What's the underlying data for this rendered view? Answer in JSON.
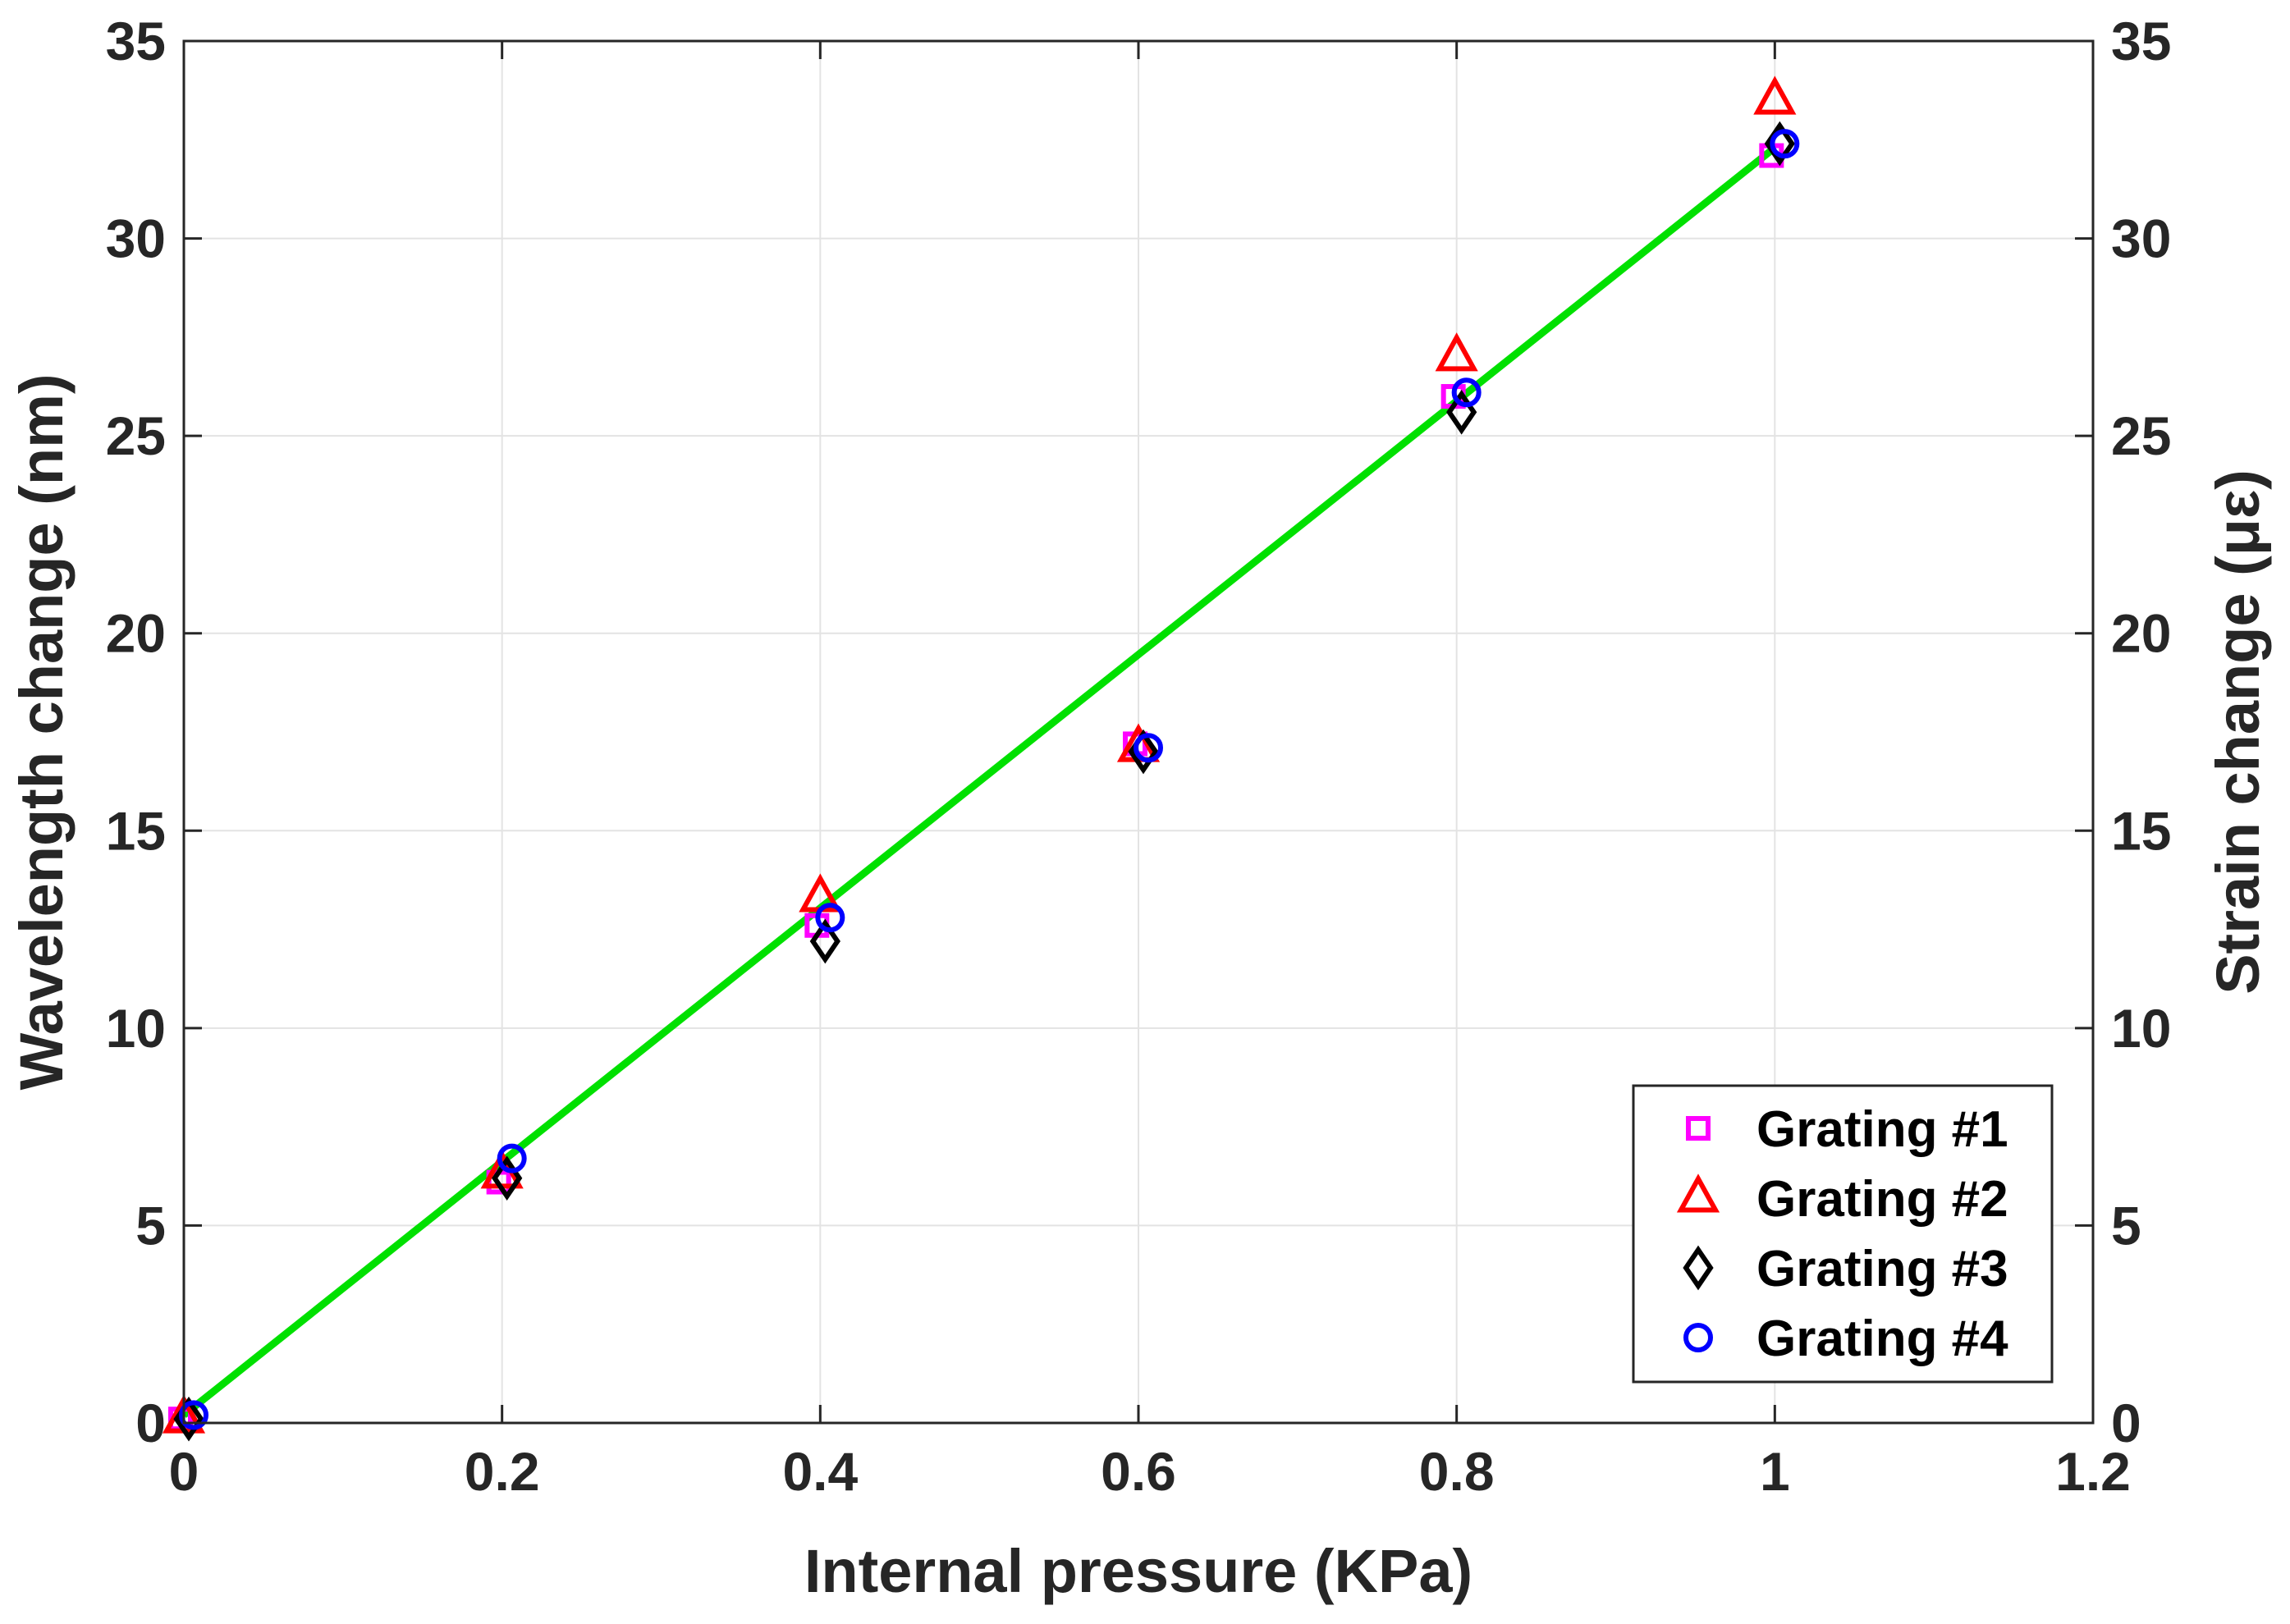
{
  "chart_data": {
    "type": "scatter",
    "title": "",
    "xlabel": "Internal pressure (KPa)",
    "ylabel": "Wavelength change (nm)",
    "ylabel_right": "Strain change (με)",
    "xlim": [
      0,
      1.2
    ],
    "ylim": [
      0,
      35
    ],
    "ylim_right": [
      0,
      35
    ],
    "xticks": [
      "0",
      "0.2",
      "0.4",
      "0.6",
      "0.8",
      "1",
      "1.2"
    ],
    "xtick_values": [
      0,
      0.2,
      0.4,
      0.6,
      0.8,
      1.0,
      1.2
    ],
    "yticks": [
      "0",
      "5",
      "10",
      "15",
      "20",
      "25",
      "30",
      "35"
    ],
    "ytick_values": [
      0,
      5,
      10,
      15,
      20,
      25,
      30,
      35
    ],
    "grid": true,
    "legend_position": "bottom-right",
    "series": [
      {
        "name": "Grating #1",
        "marker": "square",
        "color": "#ff00ff",
        "x": [
          0,
          0.2,
          0.4,
          0.6,
          0.8,
          1.0
        ],
        "values": [
          0.1,
          6.1,
          12.6,
          17.2,
          26.0,
          32.1
        ]
      },
      {
        "name": "Grating #2",
        "marker": "triangle",
        "color": "#ff0000",
        "x": [
          0,
          0.2,
          0.4,
          0.6,
          0.8,
          1.0
        ],
        "values": [
          0.1,
          6.3,
          13.3,
          17.1,
          27.0,
          33.5
        ]
      },
      {
        "name": "Grating #3",
        "marker": "diamond",
        "color": "#000000",
        "x": [
          0,
          0.2,
          0.4,
          0.6,
          0.8,
          1.0
        ],
        "values": [
          0.1,
          6.2,
          12.2,
          17.0,
          25.6,
          32.4
        ]
      },
      {
        "name": "Grating #4",
        "marker": "circle",
        "color": "#0000ff",
        "x": [
          0,
          0.2,
          0.4,
          0.6,
          0.8,
          1.0
        ],
        "values": [
          0.2,
          6.7,
          12.8,
          17.1,
          26.1,
          32.4
        ]
      }
    ],
    "fit_line": {
      "color": "#00e000",
      "x": [
        0,
        1.0
      ],
      "values": [
        0.2,
        32.3
      ]
    }
  }
}
